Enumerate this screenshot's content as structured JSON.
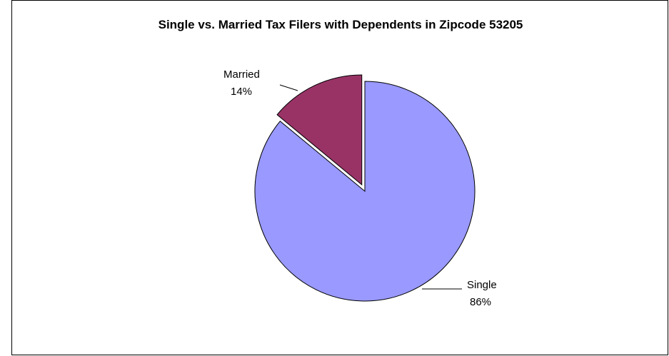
{
  "chart_data": {
    "type": "pie",
    "title": "Single vs. Married Tax Filers with Dependents in Zipcode 53205",
    "categories": [
      "Married",
      "Single"
    ],
    "values": [
      14,
      86
    ],
    "value_labels": [
      "14%",
      "86%"
    ],
    "colors": [
      "#993366",
      "#9999FF"
    ],
    "exploded": [
      "Married"
    ],
    "legend": "none"
  }
}
